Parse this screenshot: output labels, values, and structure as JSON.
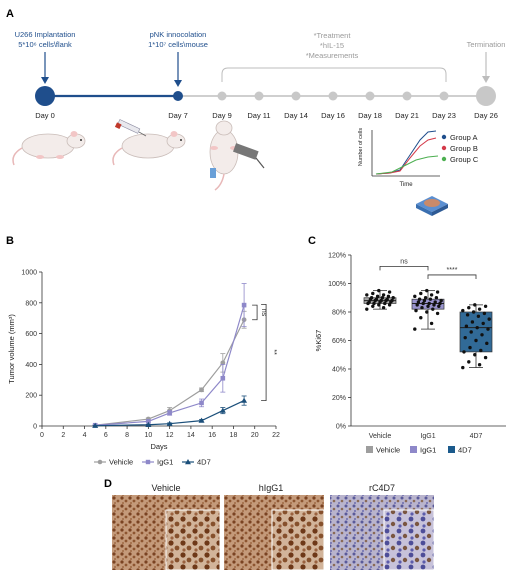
{
  "panels": {
    "a": "A",
    "b": "B",
    "c": "C",
    "d": "D"
  },
  "timeline": {
    "implant_title": "U266 Implantation",
    "implant_detail": "5*10⁶ cells\\flank",
    "pnk_title": "pNK innocolation",
    "pnk_detail": "1*10⁷ cells\\mouse",
    "treat_lines": [
      "*Treatment",
      "*hIL-15",
      "*Measurements"
    ],
    "termination": "Termination",
    "days": [
      "Day 0",
      "Day 7",
      "Day 9",
      "Day 11",
      "Day 14",
      "Day 16",
      "Day 18",
      "Day 21",
      "Day 23",
      "Day 26"
    ],
    "colors": {
      "blue": "#1f4e8c",
      "grey": "#bdbdbd"
    },
    "inset": {
      "xlabel": "Time",
      "ylabel": "Number of cells",
      "legend": [
        "Group A",
        "Group B",
        "Group C"
      ],
      "colors": [
        "#1f4e8c",
        "#d43a4a",
        "#4caf50"
      ]
    }
  },
  "chart_data": [
    {
      "type": "line",
      "xlabel": "Days",
      "ylabel": "Tumor volume (mm³)",
      "xlim": [
        0,
        22
      ],
      "ylim": [
        0,
        1000
      ],
      "x_ticks": [
        0,
        2,
        4,
        6,
        8,
        10,
        12,
        14,
        16,
        18,
        20,
        22
      ],
      "y_ticks": [
        0,
        200,
        400,
        600,
        800,
        1000
      ],
      "x": [
        5,
        10,
        12,
        15,
        17,
        19
      ],
      "series": [
        {
          "name": "Vehicle",
          "color": "#9e9e9e",
          "marker": "circle",
          "values": [
            5,
            45,
            100,
            235,
            410,
            690
          ],
          "err": [
            2,
            8,
            20,
            12,
            60,
            55
          ]
        },
        {
          "name": "IgG1",
          "color": "#8e88c9",
          "marker": "square",
          "values": [
            5,
            30,
            85,
            150,
            310,
            785
          ],
          "err": [
            2,
            5,
            15,
            25,
            90,
            140
          ]
        },
        {
          "name": "4D7",
          "color": "#1b4f7a",
          "marker": "triangle",
          "values": [
            2,
            8,
            15,
            35,
            100,
            165
          ],
          "err": [
            1,
            3,
            5,
            8,
            20,
            30
          ]
        }
      ],
      "annotations": [
        "ns",
        "**"
      ],
      "legend_position": "bottom"
    },
    {
      "type": "box",
      "ylabel": "%Ki67",
      "ylim": [
        0,
        120
      ],
      "y_ticks": [
        "0%",
        "20%",
        "40%",
        "60%",
        "80%",
        "100%",
        "120%"
      ],
      "y_tick_values": [
        0,
        20,
        40,
        60,
        80,
        100,
        120
      ],
      "categories": [
        "Vehicle",
        "IgG1",
        "4D7"
      ],
      "colors": [
        "#9e9e9e",
        "#8e88c9",
        "#1b5a8c"
      ],
      "boxes": [
        {
          "min": 82,
          "q1": 86,
          "median": 88,
          "q3": 90,
          "max": 95
        },
        {
          "min": 68,
          "q1": 82,
          "median": 86,
          "q3": 89,
          "max": 95
        },
        {
          "min": 41,
          "q1": 52,
          "median": 69,
          "q3": 80,
          "max": 85
        }
      ],
      "points": [
        [
          82,
          83,
          84,
          85,
          85,
          86,
          86,
          86,
          87,
          87,
          87,
          88,
          88,
          88,
          88,
          89,
          89,
          89,
          90,
          90,
          90,
          91,
          91,
          92,
          92,
          93,
          94,
          95
        ],
        [
          68,
          72,
          76,
          79,
          80,
          81,
          82,
          83,
          84,
          84,
          85,
          85,
          86,
          86,
          86,
          87,
          87,
          88,
          88,
          89,
          89,
          90,
          90,
          91,
          92,
          93,
          94,
          95
        ],
        [
          41,
          43,
          45,
          48,
          50,
          52,
          53,
          55,
          58,
          60,
          62,
          64,
          66,
          68,
          69,
          70,
          72,
          73,
          75,
          77,
          78,
          79,
          80,
          81,
          82,
          83,
          84,
          85
        ]
      ],
      "annotations": [
        "ns",
        "****"
      ],
      "legend": [
        "Vehicle",
        "IgG1",
        "4D7"
      ]
    }
  ],
  "images": {
    "titles": [
      "Vehicle",
      "hIgG1",
      "rC4D7"
    ]
  }
}
